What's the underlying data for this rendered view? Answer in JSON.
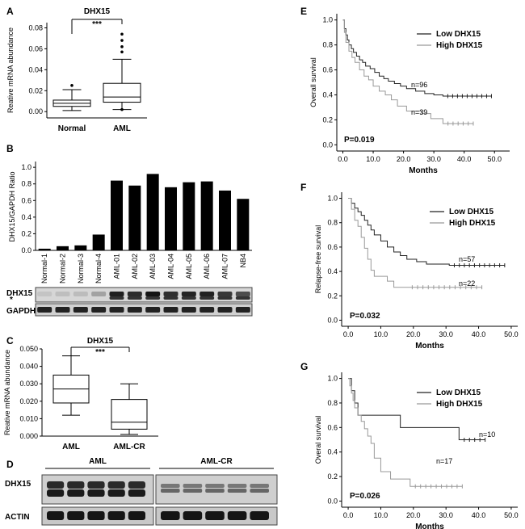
{
  "chart_data": [
    {
      "panel": "A",
      "type": "box",
      "title": "DHX15",
      "ylabel": "Reative mRNA abundance",
      "categories": [
        "Normal",
        "AML"
      ],
      "yticks": [
        "0.00",
        "0.02",
        "0.04",
        "0.06",
        "0.08"
      ],
      "ylim": [
        -0.006,
        0.085
      ],
      "boxes": [
        {
          "min": 0.001,
          "q1": 0.005,
          "median": 0.008,
          "q3": 0.011,
          "max": 0.021,
          "outliers": [
            0.025
          ]
        },
        {
          "min": 0.002,
          "q1": 0.009,
          "median": 0.014,
          "q3": 0.027,
          "max": 0.05,
          "outliers": [
            0.057,
            0.062,
            0.068,
            0.074,
            0.002
          ]
        }
      ],
      "significance": "***"
    },
    {
      "panel": "B",
      "type": "bar",
      "ylabel": "DHX15/GAPDH Ratio",
      "yticks": [
        "0.0",
        "0.2",
        "0.4",
        "0.6",
        "0.8",
        "1.0"
      ],
      "ylim": [
        0,
        1.05
      ],
      "categories": [
        "Normal-1",
        "Normal-2",
        "Normal-3",
        "Normal-4",
        "AML-01",
        "AML-02",
        "AML-03",
        "AML-04",
        "AML-05",
        "AML-06",
        "AML-07",
        "NB4"
      ],
      "values": [
        0.02,
        0.05,
        0.06,
        0.19,
        0.84,
        0.78,
        0.92,
        0.76,
        0.82,
        0.83,
        0.72,
        0.62
      ],
      "blot_labels": [
        "DHX15",
        "*",
        "GAPDH"
      ]
    },
    {
      "panel": "C",
      "type": "box",
      "title": "DHX15",
      "ylabel": "Reative mRNA abundance",
      "categories": [
        "AML",
        "AML-CR"
      ],
      "yticks": [
        "0.000",
        "0.010",
        "0.020",
        "0.030",
        "0.040",
        "0.050"
      ],
      "ylim": [
        0,
        0.05
      ],
      "boxes": [
        {
          "min": 0.012,
          "q1": 0.019,
          "median": 0.027,
          "q3": 0.035,
          "max": 0.046
        },
        {
          "min": 0.001,
          "q1": 0.004,
          "median": 0.008,
          "q3": 0.021,
          "max": 0.03
        }
      ],
      "significance": "***"
    },
    {
      "panel": "D",
      "type": "blot",
      "group_labels": [
        "AML",
        "AML-CR"
      ],
      "row_labels": [
        "DHX15",
        "ACTIN"
      ]
    },
    {
      "panel": "E",
      "type": "line",
      "xlabel": "Months",
      "ylabel": "Overall survival",
      "xlim": [
        -2,
        55
      ],
      "ylim": [
        -0.05,
        1.05
      ],
      "xticks": [
        "0.0",
        "10.0",
        "20.0",
        "30.0",
        "40.0",
        "50.0"
      ],
      "yticks": [
        "0.0",
        "0.2",
        "0.4",
        "0.6",
        "0.8",
        "1.0"
      ],
      "legend": [
        "Low DHX15",
        "High DHX15"
      ],
      "series": [
        {
          "name": "Low DHX15",
          "color": "#222222",
          "x": [
            0,
            0.5,
            1,
            1.5,
            2,
            2.8,
            3.5,
            4.5,
            5.5,
            6.5,
            7.5,
            9,
            10.5,
            12,
            13.5,
            15,
            17,
            19,
            21,
            24,
            27,
            30,
            33,
            49
          ],
          "y": [
            1.0,
            0.93,
            0.88,
            0.84,
            0.8,
            0.77,
            0.74,
            0.71,
            0.68,
            0.66,
            0.63,
            0.61,
            0.58,
            0.55,
            0.53,
            0.51,
            0.49,
            0.47,
            0.45,
            0.43,
            0.41,
            0.4,
            0.39,
            0.39
          ]
        },
        {
          "name": "High DHX15",
          "color": "#999999",
          "x": [
            0,
            0.5,
            1,
            2,
            3,
            4,
            5.5,
            7,
            8.5,
            10,
            12,
            14,
            16,
            18,
            21,
            26,
            29,
            33,
            43
          ],
          "y": [
            1.0,
            0.9,
            0.82,
            0.75,
            0.7,
            0.66,
            0.6,
            0.55,
            0.52,
            0.47,
            0.43,
            0.4,
            0.36,
            0.31,
            0.27,
            0.25,
            0.21,
            0.17,
            0.17
          ]
        }
      ],
      "annotations": [
        "n=96",
        "n=39",
        "P=0.019"
      ]
    },
    {
      "panel": "F",
      "type": "line",
      "xlabel": "Months",
      "ylabel": "Relapse-free survival",
      "xlim": [
        -2,
        52
      ],
      "ylim": [
        -0.05,
        1.05
      ],
      "xticks": [
        "0.0",
        "10.0",
        "20.0",
        "30.0",
        "40.0",
        "50.0"
      ],
      "yticks": [
        "0.0",
        "0.2",
        "0.4",
        "0.6",
        "0.8",
        "1.0"
      ],
      "legend": [
        "Low DHX15",
        "High DHX15"
      ],
      "series": [
        {
          "name": "Low DHX15",
          "color": "#222222",
          "x": [
            0,
            1,
            2,
            3,
            4,
            5,
            6,
            7,
            8,
            10,
            12,
            14,
            16,
            18,
            21,
            24,
            27,
            31,
            48
          ],
          "y": [
            1.0,
            0.96,
            0.92,
            0.89,
            0.86,
            0.82,
            0.78,
            0.74,
            0.7,
            0.65,
            0.6,
            0.56,
            0.53,
            0.5,
            0.48,
            0.46,
            0.46,
            0.45,
            0.45
          ]
        },
        {
          "name": "High DHX15",
          "color": "#999999",
          "x": [
            0,
            1,
            2,
            3,
            4,
            5,
            6,
            7,
            8,
            10,
            12,
            14,
            18,
            41
          ],
          "y": [
            1.0,
            0.91,
            0.82,
            0.77,
            0.68,
            0.59,
            0.5,
            0.41,
            0.36,
            0.36,
            0.32,
            0.27,
            0.27,
            0.27
          ]
        }
      ],
      "annotations": [
        "n=57",
        "n=22",
        "P=0.032"
      ]
    },
    {
      "panel": "G",
      "type": "line",
      "xlabel": "Months",
      "ylabel": "Overal survival",
      "xlim": [
        -2,
        52
      ],
      "ylim": [
        -0.05,
        1.05
      ],
      "xticks": [
        "0.0",
        "10.0",
        "20.0",
        "30.0",
        "40.0",
        "50.0"
      ],
      "yticks": [
        "0.0",
        "0.2",
        "0.4",
        "0.6",
        "0.8",
        "1.0"
      ],
      "legend": [
        "Low DHX15",
        "High DHX15"
      ],
      "series": [
        {
          "name": "Low DHX15",
          "color": "#222222",
          "x": [
            0,
            1,
            2,
            3,
            8,
            16,
            34,
            42
          ],
          "y": [
            1.0,
            0.9,
            0.8,
            0.7,
            0.7,
            0.6,
            0.5,
            0.5
          ]
        },
        {
          "name": "High DHX15",
          "color": "#999999",
          "x": [
            0,
            0.5,
            1,
            1.5,
            2,
            3,
            4,
            5,
            6,
            7,
            8,
            10,
            13,
            19,
            35
          ],
          "y": [
            1.0,
            0.94,
            0.88,
            0.82,
            0.76,
            0.7,
            0.65,
            0.59,
            0.53,
            0.47,
            0.35,
            0.24,
            0.18,
            0.12,
            0.12
          ]
        }
      ],
      "annotations": [
        "n=10",
        "n=17",
        "P=0.026"
      ]
    }
  ]
}
